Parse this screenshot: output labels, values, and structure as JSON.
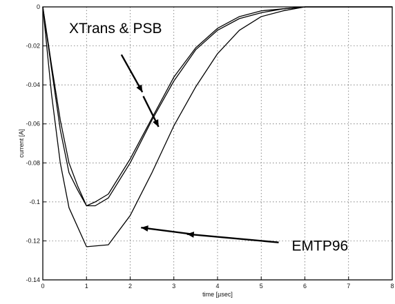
{
  "chart_data": {
    "type": "line",
    "title": "",
    "xlabel": "time [µsec]",
    "ylabel": "current [A]",
    "xlim": [
      0,
      8
    ],
    "ylim": [
      -0.14,
      0
    ],
    "grid": true,
    "x_ticks": [
      "0",
      "1",
      "2",
      "3",
      "4",
      "5",
      "6",
      "7",
      "8"
    ],
    "y_ticks": [
      "0",
      "-0.02",
      "-0.04",
      "-0.06",
      "-0.08",
      "-0.1",
      "-0.12",
      "-0.14"
    ],
    "series": [
      {
        "x": [
          0,
          0.2,
          0.4,
          0.6,
          0.8,
          1.0,
          1.2,
          1.5,
          2.0,
          2.5,
          3.0,
          3.5,
          4.0,
          4.5,
          5.0,
          5.5,
          6.0,
          6.5,
          8.0
        ],
        "y": [
          0,
          -0.03,
          -0.058,
          -0.08,
          -0.092,
          -0.102,
          -0.102,
          -0.098,
          -0.08,
          -0.058,
          -0.038,
          -0.022,
          -0.012,
          -0.006,
          -0.003,
          -0.001,
          0,
          0,
          0
        ]
      },
      {
        "x": [
          0,
          0.2,
          0.4,
          0.6,
          0.8,
          1.0,
          1.2,
          1.5,
          2.0,
          2.5,
          3.0,
          3.5,
          4.0,
          4.5,
          5.0,
          5.5,
          6.0,
          6.5,
          8.0
        ],
        "y": [
          0,
          -0.032,
          -0.063,
          -0.085,
          -0.094,
          -0.102,
          -0.1,
          -0.096,
          -0.078,
          -0.057,
          -0.036,
          -0.021,
          -0.011,
          -0.005,
          -0.002,
          -0.001,
          0,
          0,
          0
        ]
      },
      {
        "x": [
          0,
          0.2,
          0.4,
          0.6,
          1.0,
          1.5,
          2.0,
          2.5,
          3.0,
          3.5,
          4.0,
          4.5,
          5.0,
          5.5,
          6.0,
          6.5,
          8.0
        ],
        "y": [
          0,
          -0.045,
          -0.08,
          -0.103,
          -0.123,
          -0.122,
          -0.107,
          -0.085,
          -0.061,
          -0.041,
          -0.024,
          -0.012,
          -0.005,
          -0.002,
          0,
          0,
          0
        ]
      }
    ],
    "annotations": [
      {
        "text": "XTrans & PSB",
        "x": 0.6,
        "y": -0.0135
      },
      {
        "text": "EMTP96",
        "x": 5.7,
        "y": -0.125
      }
    ]
  }
}
